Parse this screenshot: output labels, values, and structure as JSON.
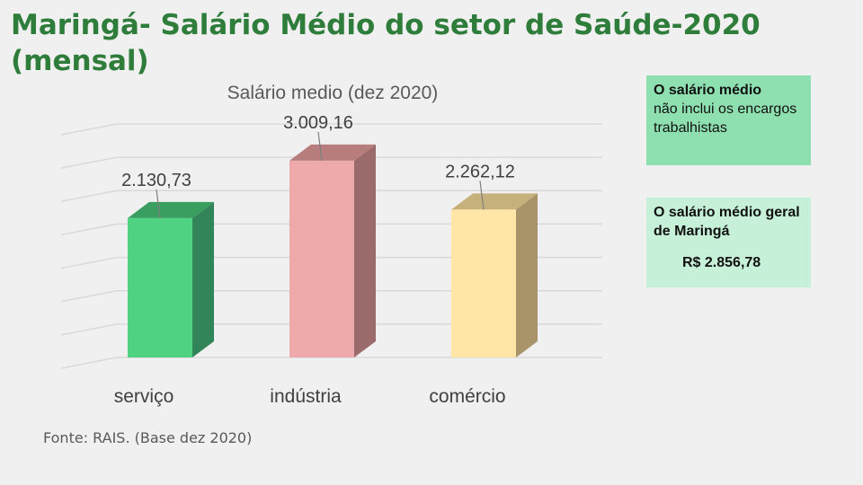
{
  "slide": {
    "title": "Maringá- Salário Médio do setor de Saúde-2020 (mensal)",
    "source": "Fonte: RAIS. (Base dez 2020)"
  },
  "notes": {
    "note1_bold": "O salário médio",
    "note1_rest": "não inclui os encargos trabalhistas",
    "note2_text": "O salário médio geral de Maringá",
    "note2_amount": "R$ 2.856,78"
  },
  "chart_data": {
    "type": "bar",
    "title": "Salário medio (dez 2020)",
    "categories": [
      "serviço",
      "indústria",
      "comércio"
    ],
    "values": [
      2130.73,
      3009.16,
      2262.12
    ],
    "value_labels": [
      "2.130,73",
      "3.009,16",
      "2.262,12"
    ],
    "colors": [
      "#50d283",
      "#eeaaaa",
      "#ffe6a6"
    ],
    "side_colors": [
      "#318558",
      "#9b6a6a",
      "#a89468"
    ],
    "top_colors": [
      "#3a9e60",
      "#b77d7d",
      "#c6b07c"
    ],
    "ylim": [
      0,
      3500
    ],
    "grid": true,
    "style": "3d-column"
  }
}
